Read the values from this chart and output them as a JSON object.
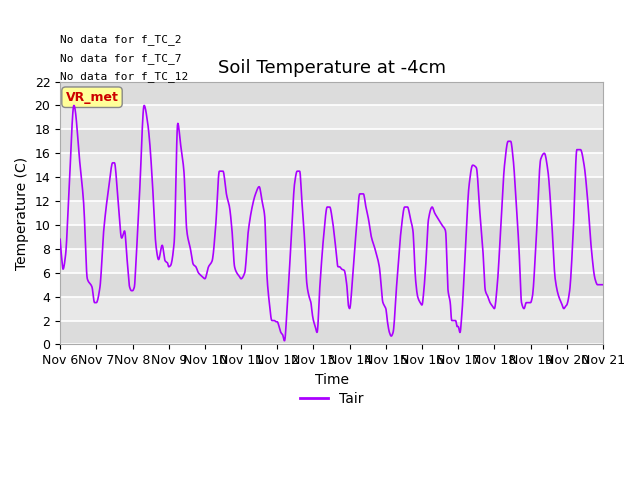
{
  "title": "Soil Temperature at -4cm",
  "xlabel": "Time",
  "ylabel": "Temperature (C)",
  "ylim": [
    0,
    22
  ],
  "yticks": [
    0,
    2,
    4,
    6,
    8,
    10,
    12,
    14,
    16,
    18,
    20,
    22
  ],
  "x_labels": [
    "Nov 6",
    "Nov 7",
    "Nov 8",
    "Nov 9",
    "Nov 10",
    "Nov 11",
    "Nov 12",
    "Nov 13",
    "Nov 14",
    "Nov 15",
    "Nov 16",
    "Nov 17",
    "Nov 18",
    "Nov 19",
    "Nov 20",
    "Nov 21"
  ],
  "line_color": "#AA00FF",
  "background_color": "#E8E8E8",
  "annotations": [
    "No data for f_TC_2",
    "No data for f_TC_7",
    "No data for f_TC_12"
  ],
  "legend_label": "Tair",
  "legend_box_color": "#FFFF99",
  "legend_box_text_color": "#CC0000",
  "title_fontsize": 13,
  "axis_fontsize": 10,
  "tick_fontsize": 9,
  "figsize": [
    6.4,
    4.8
  ],
  "dpi": 100
}
